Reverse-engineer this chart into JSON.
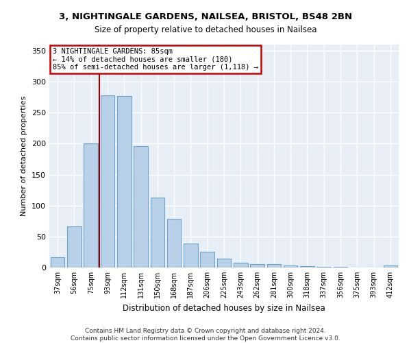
{
  "title1": "3, NIGHTINGALE GARDENS, NAILSEA, BRISTOL, BS48 2BN",
  "title2": "Size of property relative to detached houses in Nailsea",
  "xlabel": "Distribution of detached houses by size in Nailsea",
  "ylabel": "Number of detached properties",
  "categories": [
    "37sqm",
    "56sqm",
    "75sqm",
    "93sqm",
    "112sqm",
    "131sqm",
    "150sqm",
    "168sqm",
    "187sqm",
    "206sqm",
    "225sqm",
    "243sqm",
    "262sqm",
    "281sqm",
    "300sqm",
    "318sqm",
    "337sqm",
    "356sqm",
    "375sqm",
    "393sqm",
    "412sqm"
  ],
  "values": [
    17,
    67,
    200,
    278,
    277,
    196,
    113,
    79,
    39,
    25,
    14,
    8,
    6,
    6,
    3,
    2,
    1,
    1,
    0,
    0,
    3
  ],
  "bar_color": "#b8d0e8",
  "bar_edge_color": "#6ba3cc",
  "bg_color": "#e8eef6",
  "grid_color": "#ffffff",
  "vline_x": 2.5,
  "vline_color": "#990000",
  "annotation_text": "3 NIGHTINGALE GARDENS: 85sqm\n← 14% of detached houses are smaller (180)\n85% of semi-detached houses are larger (1,118) →",
  "annotation_box_color": "#cc0000",
  "annotation_bg": "#ffffff",
  "footnote": "Contains HM Land Registry data © Crown copyright and database right 2024.\nContains public sector information licensed under the Open Government Licence v3.0.",
  "ylim": [
    0,
    360
  ],
  "yticks": [
    0,
    50,
    100,
    150,
    200,
    250,
    300,
    350
  ],
  "fig_bg": "#ffffff"
}
